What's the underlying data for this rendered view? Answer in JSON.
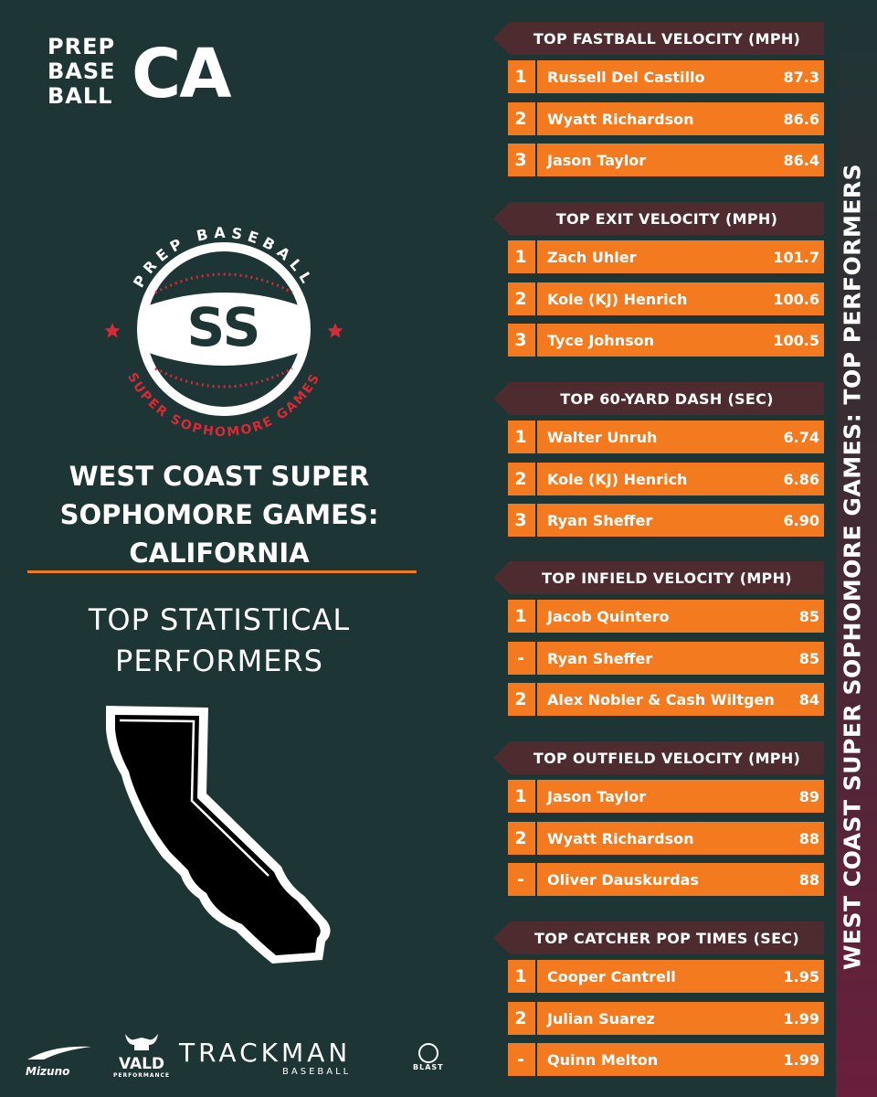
{
  "logo": {
    "top_words": [
      "PREP",
      "BASE",
      "BALL"
    ],
    "region": "CA"
  },
  "emblem": {
    "arc_top": "PREP BASEBALL",
    "monogram": "SS",
    "arc_bottom": "SUPER SOPHOMORE GAMES"
  },
  "event_title": "WEST COAST SUPER SOPHOMORE GAMES: CALIFORNIA",
  "subtitle": "TOP STATISTICAL PERFORMERS",
  "side_label": "WEST COAST SUPER SOPHOMORE GAMES: TOP PERFORMERS",
  "sponsors": {
    "mizuno": "Mizuno",
    "vald": "VALD",
    "vald_sub": "PERFORMANCE",
    "trackman": "TRACKMAN",
    "trackman_sub": "BASEBALL",
    "blast": "BLAST"
  },
  "colors": {
    "background": "#1e3535",
    "accent": "#f47a1f",
    "header": "#4d2b2e",
    "emblem_red": "#d62b36"
  },
  "categories": [
    {
      "title": "TOP FASTBALL VELOCITY (MPH)",
      "rows": [
        {
          "rank": "1",
          "name": "Russell Del Castillo",
          "value": "87.3"
        },
        {
          "rank": "2",
          "name": "Wyatt Richardson",
          "value": "86.6"
        },
        {
          "rank": "3",
          "name": "Jason Taylor",
          "value": "86.4"
        }
      ]
    },
    {
      "title": "TOP EXIT VELOCITY (MPH)",
      "rows": [
        {
          "rank": "1",
          "name": "Zach Uhler",
          "value": "101.7"
        },
        {
          "rank": "2",
          "name": "Kole (KJ) Henrich",
          "value": "100.6"
        },
        {
          "rank": "3",
          "name": "Tyce Johnson",
          "value": "100.5"
        }
      ]
    },
    {
      "title": "TOP 60-YARD DASH (SEC)",
      "rows": [
        {
          "rank": "1",
          "name": "Walter Unruh",
          "value": "6.74"
        },
        {
          "rank": "2",
          "name": "Kole (KJ) Henrich",
          "value": "6.86"
        },
        {
          "rank": "3",
          "name": "Ryan Sheffer",
          "value": "6.90"
        }
      ]
    },
    {
      "title": "TOP INFIELD VELOCITY (MPH)",
      "rows": [
        {
          "rank": "1",
          "name": "Jacob Quintero",
          "value": "85"
        },
        {
          "rank": "-",
          "name": "Ryan Sheffer",
          "value": "85"
        },
        {
          "rank": "2",
          "name": "Alex Nobler & Cash Wiltgen",
          "value": "84"
        }
      ]
    },
    {
      "title": "TOP OUTFIELD VELOCITY (MPH)",
      "rows": [
        {
          "rank": "1",
          "name": "Jason Taylor",
          "value": "89"
        },
        {
          "rank": "2",
          "name": "Wyatt Richardson",
          "value": "88"
        },
        {
          "rank": "-",
          "name": "Oliver Dauskurdas",
          "value": "88"
        }
      ]
    },
    {
      "title": "TOP CATCHER POP TIMES (SEC)",
      "rows": [
        {
          "rank": "1",
          "name": "Cooper Cantrell",
          "value": "1.95"
        },
        {
          "rank": "2",
          "name": "Julian Suarez",
          "value": "1.99"
        },
        {
          "rank": "-",
          "name": "Quinn Melton",
          "value": "1.99"
        }
      ]
    }
  ]
}
